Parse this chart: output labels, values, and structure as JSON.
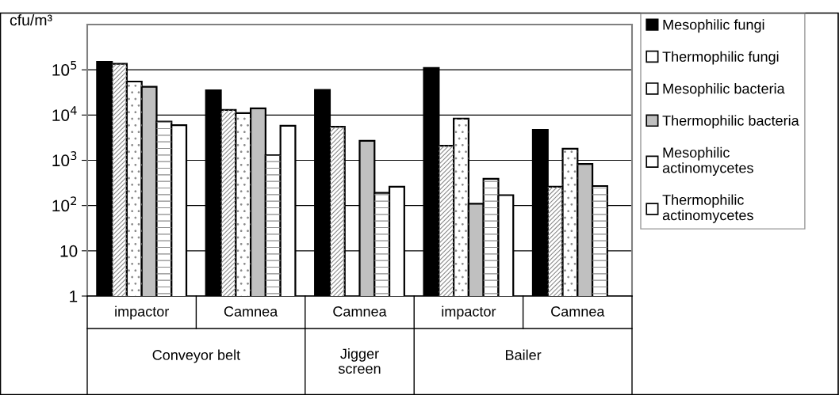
{
  "chart_data": {
    "type": "bar",
    "ylabel": "cfu/m³",
    "log": true,
    "grid": "y",
    "legend": "right",
    "categories": [
      "impactor",
      "Camnea",
      "Camnea",
      "impactor",
      "Camnea"
    ],
    "annotations": [
      "Conveyor belt",
      "Jigger\nscreen",
      "Bailer"
    ],
    "ylim": [
      1,
      1000000
    ],
    "yticks": [
      1,
      10,
      {
        "value": 100,
        "label": "10$^{2}$"
      },
      {
        "value": 1000,
        "label": "10$^{3}$"
      },
      {
        "value": 10000,
        "label": "10$^{4}$"
      },
      {
        "value": 100000,
        "label": "10$^{5}$"
      }
    ],
    "series": [
      {
        "name": "Mesophilic fungi",
        "color": "#000000",
        "values": [
          150000,
          35000,
          36000,
          110000,
          4700
        ]
      },
      {
        "name": "Thermophilic fungi",
        "color": "#ffffff",
        "values": [
          135000,
          13000,
          5500,
          2100,
          260
        ]
      },
      {
        "name": "Mesophilic bacteria",
        "color": "#ffffff",
        "values": [
          55000,
          11000,
          null,
          8300,
          1800
        ]
      },
      {
        "name": "Thermophilic bacteria",
        "color": "#c0c0c0",
        "values": [
          42000,
          14000,
          2700,
          110,
          830
        ]
      },
      {
        "name": "Mesophilic actinomycetes",
        "color": "#ffffff",
        "values": [
          7200,
          1300,
          190,
          390,
          270
        ]
      },
      {
        "name": "Thermophilic actinomycetes",
        "color": "#ffffff",
        "values": [
          6000,
          5800,
          260,
          170,
          null
        ]
      }
    ]
  }
}
